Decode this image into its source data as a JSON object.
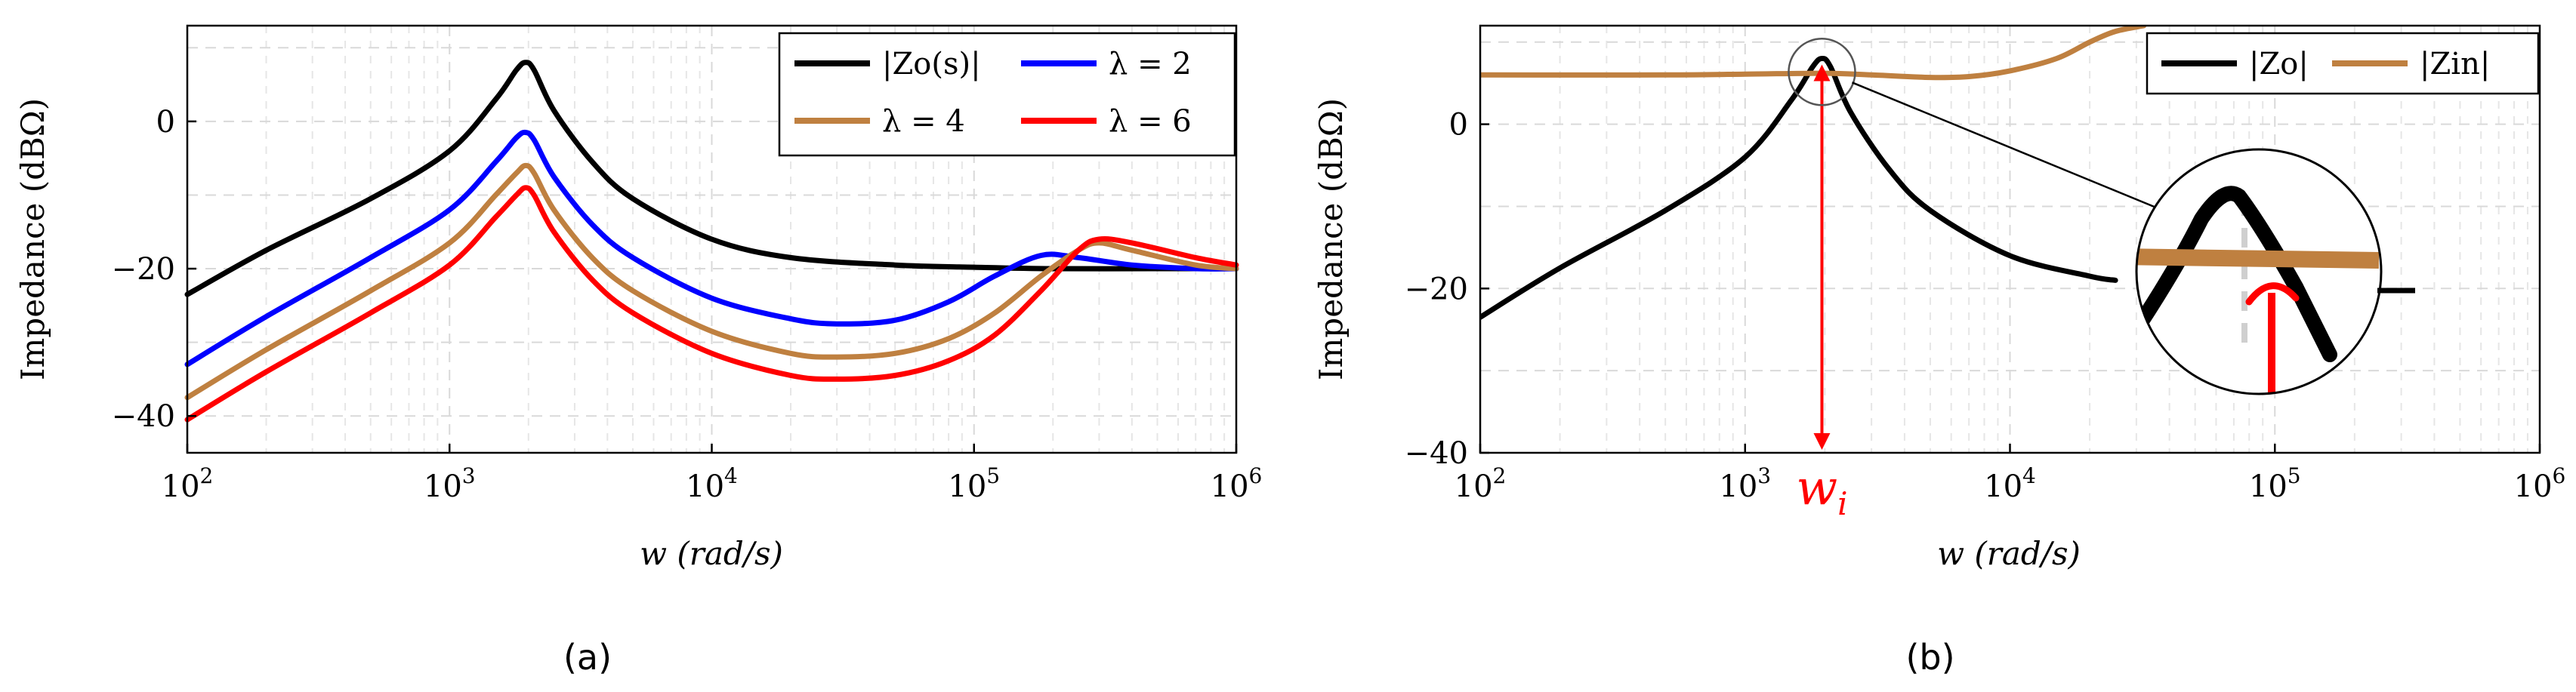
{
  "colors": {
    "zo": "#000000",
    "lambda2": "#0000ff",
    "lambda4": "#bf8040",
    "lambda6": "#ff0000",
    "zin": "#bf8040",
    "wi": "#ff0000"
  },
  "chart_data": [
    {
      "type": "line",
      "caption": "(a)",
      "xlabel": "w (rad/s)",
      "ylabel": "Impedance (dBΩ)",
      "xscale": "log",
      "xlim": [
        100,
        1000000
      ],
      "ylim": [
        -45,
        13
      ],
      "xticks": [
        {
          "base": "10",
          "exp": "2"
        },
        {
          "base": "10",
          "exp": "3"
        },
        {
          "base": "10",
          "exp": "4"
        },
        {
          "base": "10",
          "exp": "5"
        },
        {
          "base": "10",
          "exp": "6"
        }
      ],
      "yticks": [
        0,
        -20,
        -40
      ],
      "grid": true,
      "legend_position": "top-right",
      "series": [
        {
          "name": "|Zo(s)|",
          "color_key": "zo",
          "x": [
            100,
            200,
            500,
            1000,
            1500,
            1800,
            1950,
            2100,
            2500,
            3500,
            5000,
            10000,
            20000,
            50000,
            100000,
            200000,
            500000,
            1000000
          ],
          "y": [
            -23.5,
            -17.5,
            -10.5,
            -4,
            3,
            7,
            8,
            7,
            1.5,
            -5.5,
            -10.5,
            -16,
            -18.5,
            -19.5,
            -19.8,
            -20,
            -20,
            -20
          ]
        },
        {
          "name": "λ = 2",
          "color_key": "lambda2",
          "x": [
            100,
            200,
            500,
            1000,
            1500,
            1800,
            1950,
            2100,
            2500,
            3500,
            5000,
            10000,
            20000,
            30000,
            50000,
            80000,
            120000,
            180000,
            250000,
            400000,
            700000,
            1000000
          ],
          "y": [
            -33,
            -26.5,
            -18.5,
            -12,
            -5.5,
            -2.2,
            -1.5,
            -2.5,
            -7.5,
            -14,
            -18.5,
            -24,
            -26.8,
            -27.5,
            -27,
            -24.5,
            -21,
            -18.2,
            -18.5,
            -19.5,
            -20,
            -20
          ]
        },
        {
          "name": "λ = 4",
          "color_key": "lambda4",
          "x": [
            100,
            200,
            500,
            1000,
            1500,
            1800,
            1950,
            2100,
            2500,
            3500,
            5000,
            10000,
            20000,
            30000,
            50000,
            80000,
            120000,
            180000,
            250000,
            300000,
            400000,
            700000,
            1000000
          ],
          "y": [
            -37.5,
            -31,
            -23,
            -16.5,
            -10,
            -7,
            -6,
            -7,
            -12,
            -18.5,
            -23,
            -28.5,
            -31.5,
            -32,
            -31.5,
            -29.5,
            -26,
            -21,
            -17.5,
            -16.5,
            -17.5,
            -19.5,
            -20
          ]
        },
        {
          "name": "λ = 6",
          "color_key": "lambda6",
          "x": [
            100,
            200,
            500,
            1000,
            1500,
            1800,
            1950,
            2100,
            2500,
            3500,
            5000,
            10000,
            20000,
            30000,
            50000,
            80000,
            120000,
            180000,
            250000,
            300000,
            400000,
            700000,
            1000000
          ],
          "y": [
            -40.5,
            -34,
            -26,
            -19.5,
            -13,
            -10,
            -9,
            -10,
            -15,
            -21.5,
            -26,
            -31.5,
            -34.5,
            -35,
            -34.5,
            -32.5,
            -29,
            -23,
            -17.5,
            -16,
            -16.5,
            -18.5,
            -19.5
          ]
        }
      ]
    },
    {
      "type": "line",
      "caption": "(b)",
      "xlabel": "w (rad/s)",
      "ylabel": "Impedance (dBΩ)",
      "xscale": "log",
      "xlim": [
        100,
        1000000
      ],
      "ylim": [
        -40,
        12
      ],
      "xticks": [
        {
          "base": "10",
          "exp": "2"
        },
        {
          "base": "10",
          "exp": "3"
        },
        {
          "base": "10",
          "exp": "4"
        },
        {
          "base": "10",
          "exp": "5"
        },
        {
          "base": "10",
          "exp": "6"
        }
      ],
      "yticks": [
        0,
        -20,
        -40
      ],
      "grid": true,
      "legend_position": "top-right",
      "series": [
        {
          "name": "|Zo|",
          "color_key": "zo",
          "x": [
            100,
            200,
            500,
            1000,
            1500,
            1800,
            1950,
            2100,
            2500,
            3500,
            5000,
            10000,
            20000,
            25000
          ],
          "y": [
            -23.5,
            -17.5,
            -10.5,
            -4,
            3,
            7,
            8,
            7,
            1.5,
            -5.5,
            -10.5,
            -16,
            -18.5,
            -19
          ]
        },
        {
          "name": "|Zin|",
          "color_key": "zin",
          "x": [
            100,
            500,
            1000,
            2000,
            3000,
            5000,
            7000,
            10000,
            15000,
            20000,
            25000,
            32000
          ],
          "y": [
            6,
            6,
            6.1,
            6.2,
            6.0,
            5.7,
            5.8,
            6.5,
            8,
            10,
            11.3,
            12
          ]
        }
      ],
      "annotation": {
        "label": "w",
        "subscript": "i",
        "x": 1950
      },
      "inset": {
        "magnified_point_x": 1950,
        "magnified_point_y": 6
      }
    }
  ]
}
